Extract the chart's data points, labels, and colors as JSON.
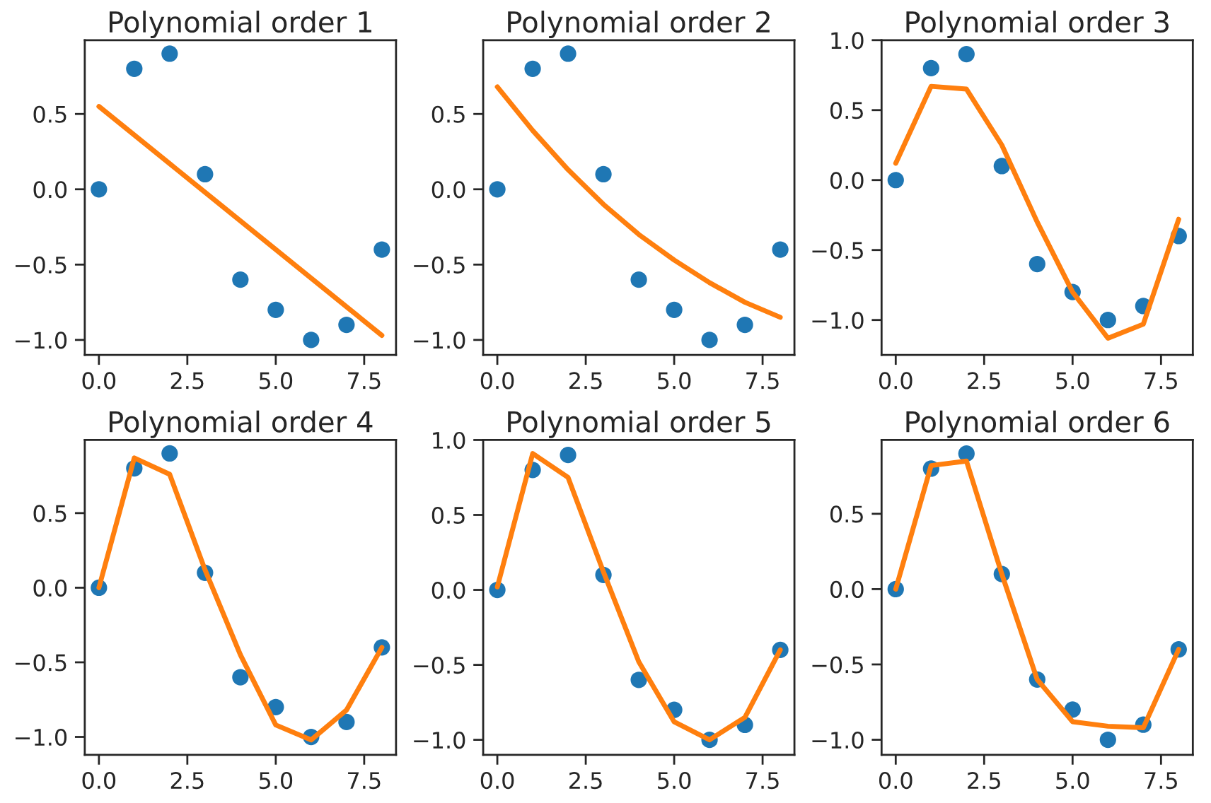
{
  "chart_data": [
    {
      "type": "scatter",
      "title": "Polynomial order 1",
      "x": [
        0,
        1,
        2,
        3,
        4,
        5,
        6,
        7,
        8
      ],
      "xlim": [
        -0.4,
        8.4
      ],
      "ylim": [
        -1.1,
        0.99
      ],
      "xticks": [
        {
          "value": 0,
          "label": "0.0"
        },
        {
          "value": 2.5,
          "label": "2.5"
        },
        {
          "value": 5,
          "label": "5.0"
        },
        {
          "value": 7.5,
          "label": "7.5"
        }
      ],
      "yticks": [
        {
          "value": -1,
          "label": "−1.0"
        },
        {
          "value": -0.5,
          "label": "−0.5"
        },
        {
          "value": 0,
          "label": "0.0"
        },
        {
          "value": 0.5,
          "label": "0.5"
        }
      ],
      "grid": false,
      "series": [
        {
          "color": "#1f77b4",
          "marker": "circle",
          "values": [
            0,
            0.8,
            0.9,
            0.1,
            -0.6,
            -0.8,
            -1.0,
            -0.9,
            -0.4
          ]
        },
        {
          "type": "line",
          "color": "#ff7f0e",
          "marker": "none",
          "line_style": "solid",
          "values": [
            0.55,
            0.36,
            0.17,
            -0.02,
            -0.21,
            -0.4,
            -0.59,
            -0.78,
            -0.97
          ]
        }
      ]
    },
    {
      "type": "scatter",
      "title": "Polynomial order 2",
      "x": [
        0,
        1,
        2,
        3,
        4,
        5,
        6,
        7,
        8
      ],
      "xlim": [
        -0.4,
        8.4
      ],
      "ylim": [
        -1.1,
        0.99
      ],
      "xticks": [
        {
          "value": 0,
          "label": "0.0"
        },
        {
          "value": 2.5,
          "label": "2.5"
        },
        {
          "value": 5,
          "label": "5.0"
        },
        {
          "value": 7.5,
          "label": "7.5"
        }
      ],
      "yticks": [
        {
          "value": -1,
          "label": "−1.0"
        },
        {
          "value": -0.5,
          "label": "−0.5"
        },
        {
          "value": 0,
          "label": "0.0"
        },
        {
          "value": 0.5,
          "label": "0.5"
        }
      ],
      "grid": false,
      "series": [
        {
          "color": "#1f77b4",
          "marker": "circle",
          "values": [
            0,
            0.8,
            0.9,
            0.1,
            -0.6,
            -0.8,
            -1.0,
            -0.9,
            -0.4
          ]
        },
        {
          "type": "line",
          "color": "#ff7f0e",
          "marker": "none",
          "line_style": "solid",
          "values": [
            0.68,
            0.39,
            0.13,
            -0.1,
            -0.3,
            -0.47,
            -0.62,
            -0.75,
            -0.85
          ]
        }
      ]
    },
    {
      "type": "scatter",
      "title": "Polynomial order 3",
      "x": [
        0,
        1,
        2,
        3,
        4,
        5,
        6,
        7,
        8
      ],
      "xlim": [
        -0.4,
        8.4
      ],
      "ylim": [
        -1.25,
        1.0
      ],
      "xticks": [
        {
          "value": 0,
          "label": "0.0"
        },
        {
          "value": 2.5,
          "label": "2.5"
        },
        {
          "value": 5,
          "label": "5.0"
        },
        {
          "value": 7.5,
          "label": "7.5"
        }
      ],
      "yticks": [
        {
          "value": -1,
          "label": "−1.0"
        },
        {
          "value": -0.5,
          "label": "−0.5"
        },
        {
          "value": 0,
          "label": "0.0"
        },
        {
          "value": 0.5,
          "label": "0.5"
        },
        {
          "value": 1,
          "label": "1.0"
        }
      ],
      "grid": false,
      "series": [
        {
          "color": "#1f77b4",
          "marker": "circle",
          "values": [
            0,
            0.8,
            0.9,
            0.1,
            -0.6,
            -0.8,
            -1.0,
            -0.9,
            -0.4
          ]
        },
        {
          "type": "line",
          "color": "#ff7f0e",
          "marker": "none",
          "line_style": "solid",
          "values": [
            0.12,
            0.67,
            0.65,
            0.25,
            -0.3,
            -0.8,
            -1.13,
            -1.03,
            -0.28
          ]
        }
      ]
    },
    {
      "type": "scatter",
      "title": "Polynomial order 4",
      "x": [
        0,
        1,
        2,
        3,
        4,
        5,
        6,
        7,
        8
      ],
      "xlim": [
        -0.4,
        8.4
      ],
      "ylim": [
        -1.12,
        0.99
      ],
      "xticks": [
        {
          "value": 0,
          "label": "0.0"
        },
        {
          "value": 2.5,
          "label": "2.5"
        },
        {
          "value": 5,
          "label": "5.0"
        },
        {
          "value": 7.5,
          "label": "7.5"
        }
      ],
      "yticks": [
        {
          "value": -1,
          "label": "−1.0"
        },
        {
          "value": -0.5,
          "label": "−0.5"
        },
        {
          "value": 0,
          "label": "0.0"
        },
        {
          "value": 0.5,
          "label": "0.5"
        }
      ],
      "grid": false,
      "series": [
        {
          "color": "#1f77b4",
          "marker": "circle",
          "values": [
            0,
            0.8,
            0.9,
            0.1,
            -0.6,
            -0.8,
            -1.0,
            -0.9,
            -0.4
          ]
        },
        {
          "type": "line",
          "color": "#ff7f0e",
          "marker": "none",
          "line_style": "solid",
          "values": [
            0.0,
            0.87,
            0.76,
            0.12,
            -0.45,
            -0.92,
            -1.02,
            -0.82,
            -0.4
          ]
        }
      ]
    },
    {
      "type": "scatter",
      "title": "Polynomial order 5",
      "x": [
        0,
        1,
        2,
        3,
        4,
        5,
        6,
        7,
        8
      ],
      "xlim": [
        -0.4,
        8.4
      ],
      "ylim": [
        -1.1,
        1.0
      ],
      "xticks": [
        {
          "value": 0,
          "label": "0.0"
        },
        {
          "value": 2.5,
          "label": "2.5"
        },
        {
          "value": 5,
          "label": "5.0"
        },
        {
          "value": 7.5,
          "label": "7.5"
        }
      ],
      "yticks": [
        {
          "value": -1,
          "label": "−1.0"
        },
        {
          "value": -0.5,
          "label": "−0.5"
        },
        {
          "value": 0,
          "label": "0.0"
        },
        {
          "value": 0.5,
          "label": "0.5"
        },
        {
          "value": 1,
          "label": "1.0"
        }
      ],
      "grid": false,
      "series": [
        {
          "color": "#1f77b4",
          "marker": "circle",
          "values": [
            0,
            0.8,
            0.9,
            0.1,
            -0.6,
            -0.8,
            -1.0,
            -0.9,
            -0.4
          ]
        },
        {
          "type": "line",
          "color": "#ff7f0e",
          "marker": "none",
          "line_style": "solid",
          "values": [
            0.02,
            0.91,
            0.75,
            0.12,
            -0.48,
            -0.88,
            -1.0,
            -0.85,
            -0.4
          ]
        }
      ]
    },
    {
      "type": "scatter",
      "title": "Polynomial order 6",
      "x": [
        0,
        1,
        2,
        3,
        4,
        5,
        6,
        7,
        8
      ],
      "xlim": [
        -0.4,
        8.4
      ],
      "ylim": [
        -1.1,
        0.99
      ],
      "xticks": [
        {
          "value": 0,
          "label": "0.0"
        },
        {
          "value": 2.5,
          "label": "2.5"
        },
        {
          "value": 5,
          "label": "5.0"
        },
        {
          "value": 7.5,
          "label": "7.5"
        }
      ],
      "yticks": [
        {
          "value": -1,
          "label": "−1.0"
        },
        {
          "value": -0.5,
          "label": "−0.5"
        },
        {
          "value": 0,
          "label": "0.0"
        },
        {
          "value": 0.5,
          "label": "0.5"
        }
      ],
      "grid": false,
      "series": [
        {
          "color": "#1f77b4",
          "marker": "circle",
          "values": [
            0,
            0.8,
            0.9,
            0.1,
            -0.6,
            -0.8,
            -1.0,
            -0.9,
            -0.4
          ]
        },
        {
          "type": "line",
          "color": "#ff7f0e",
          "marker": "none",
          "line_style": "solid",
          "values": [
            0.0,
            0.82,
            0.85,
            0.1,
            -0.6,
            -0.88,
            -0.91,
            -0.92,
            -0.4
          ]
        }
      ]
    }
  ]
}
